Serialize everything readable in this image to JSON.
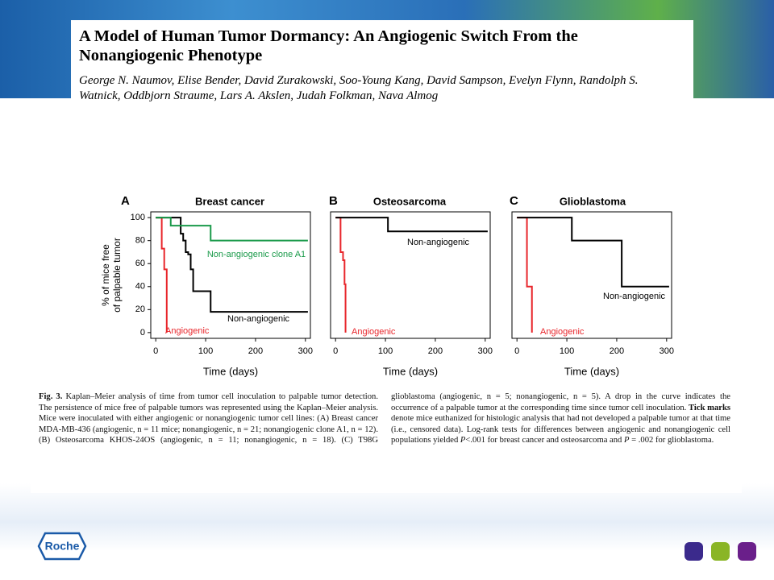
{
  "header": {
    "title": "A Model of Human Tumor Dormancy: An Angiogenic Switch From the Nonangiogenic Phenotype",
    "authors": "George N. Naumov, Elise Bender, David Zurakowski, Soo-Young Kang, David Sampson, Evelyn Flynn, Randolph S. Watnick, Oddbjorn Straume, Lars A. Akslen, Judah Folkman, Nava Almog"
  },
  "chart_data": [
    {
      "type": "line",
      "step": true,
      "panel": "A",
      "title": "Breast cancer",
      "xlabel": "Time (days)",
      "ylabel": [
        "% of mice free",
        "of palpable tumor"
      ],
      "xlim": [
        -10,
        310
      ],
      "xticks": [
        0,
        100,
        200,
        300
      ],
      "ylim": [
        -5,
        105
      ],
      "yticks": [
        0,
        20,
        40,
        60,
        80,
        100
      ],
      "series": [
        {
          "name": "Angiogenic",
          "color": "#e8262b",
          "x": [
            0,
            12,
            17,
            22
          ],
          "values": [
            100,
            73,
            55,
            0
          ]
        },
        {
          "name": "Non-angiogenic",
          "color": "#000000",
          "x": [
            0,
            50,
            55,
            60,
            65,
            70,
            75,
            110,
            305
          ],
          "values": [
            100,
            86,
            80,
            70,
            68,
            55,
            36,
            18,
            18
          ]
        },
        {
          "name": "Non-angiogenic clone A1",
          "color": "#1a9a4a",
          "x": [
            0,
            30,
            110,
            305
          ],
          "values": [
            100,
            93,
            80,
            80
          ]
        }
      ]
    },
    {
      "type": "line",
      "step": true,
      "panel": "B",
      "title": "Osteosarcoma",
      "xlabel": "Time (days)",
      "xlim": [
        -10,
        310
      ],
      "xticks": [
        0,
        100,
        200,
        300
      ],
      "ylim": [
        -5,
        105
      ],
      "series": [
        {
          "name": "Angiogenic",
          "color": "#e8262b",
          "x": [
            0,
            10,
            15,
            18,
            20
          ],
          "values": [
            100,
            70,
            63,
            42,
            0
          ]
        },
        {
          "name": "Non-angiogenic",
          "color": "#000000",
          "x": [
            0,
            105,
            305
          ],
          "values": [
            100,
            88,
            88
          ]
        }
      ]
    },
    {
      "type": "line",
      "step": true,
      "panel": "C",
      "title": "Glioblastoma",
      "xlabel": "Time (days)",
      "xlim": [
        -10,
        310
      ],
      "xticks": [
        0,
        100,
        200,
        300
      ],
      "ylim": [
        -5,
        105
      ],
      "series": [
        {
          "name": "Angiogenic",
          "color": "#e8262b",
          "x": [
            0,
            20,
            30
          ],
          "values": [
            100,
            40,
            0
          ]
        },
        {
          "name": "Non-angiogenic",
          "color": "#000000",
          "x": [
            0,
            110,
            210,
            305
          ],
          "values": [
            100,
            80,
            40,
            40
          ]
        }
      ]
    }
  ],
  "caption": {
    "parts": [
      "Fig. 3.",
      " Kaplan–Meier analysis of time from tumor cell inoculation to palpable tumor detection. The persistence of mice free of palpable tumors was represented using the Kaplan–Meier analysis. Mice were inoculated with either angiogenic or nonangiogenic tumor cell lines: (A) Breast cancer MDA-MB-436 (angiogenic, n = 11 mice; nonangiogenic, n = 21; nonangiogenic clone A1, n = 12). (B) Osteosarcoma KHOS-24OS (angiogenic, n = 11; nonangiogenic, n = 18). (C) T98G glioblastoma (angiogenic, n = 5; nonangiogenic, n = 5). A drop in the curve indicates the occurrence of a palpable tumor at the corresponding time since tumor cell inoculation. ",
      "Tick marks",
      " denote mice euthanized for histologic analysis that had not developed a palpable tumor at that time (i.e., censored data). Log-rank tests for differences between angiogenic and nonangiogenic cell populations yielded ",
      "P",
      "<.001 for breast cancer and osteosarcoma and ",
      "P",
      " = .002 for glioblastoma."
    ]
  },
  "logo": "Roche"
}
